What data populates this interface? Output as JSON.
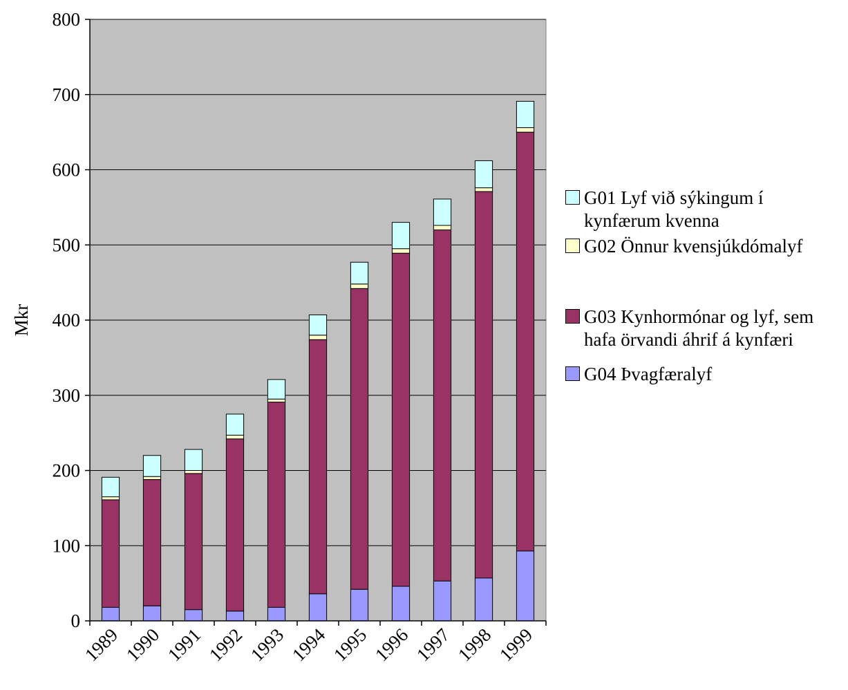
{
  "chart_data": {
    "type": "bar",
    "stacked": true,
    "categories": [
      "1989",
      "1990",
      "1991",
      "1992",
      "1993",
      "1994",
      "1995",
      "1996",
      "1997",
      "1998",
      "1999"
    ],
    "series": [
      {
        "name": "G04 Þvagfæralyf",
        "color": "#9999ff",
        "values": [
          18,
          20,
          15,
          13,
          18,
          36,
          42,
          46,
          53,
          57,
          93
        ]
      },
      {
        "name": "G03 Kynhormónar og lyf, sem hafa örvandi áhrif á kynfæri",
        "color": "#993366",
        "values": [
          143,
          168,
          181,
          229,
          273,
          338,
          400,
          443,
          467,
          514,
          557
        ]
      },
      {
        "name": "G02 Önnur kvensjúkdómalyf",
        "color": "#ffffcc",
        "values": [
          4,
          4,
          4,
          5,
          4,
          6,
          6,
          6,
          6,
          5,
          6
        ]
      },
      {
        "name": "G01 Lyf við sýkingum í kynfærum kvenna",
        "color": "#ccffff",
        "values": [
          26,
          28,
          28,
          28,
          26,
          27,
          29,
          35,
          35,
          36,
          35
        ]
      }
    ],
    "ylabel": "Mkr",
    "xlabel": "",
    "ylim": [
      0,
      800
    ],
    "yticks": [
      0,
      100,
      200,
      300,
      400,
      500,
      600,
      700,
      800
    ],
    "grid": true,
    "plot_background": "#c0c0c0",
    "legend_position": "right"
  },
  "legend": [
    {
      "label": "G01 Lyf við sýkingum í\nkynfærum kvenna",
      "color": "#ccffff"
    },
    {
      "label": "G02 Önnur kvensjúkdómalyf",
      "color": "#ffffcc"
    },
    {
      "label": "G03 Kynhormónar og lyf, sem\nhafa örvandi áhrif á kynfæri",
      "color": "#993366"
    },
    {
      "label": "G04 Þvagfæralyf",
      "color": "#9999ff"
    }
  ]
}
